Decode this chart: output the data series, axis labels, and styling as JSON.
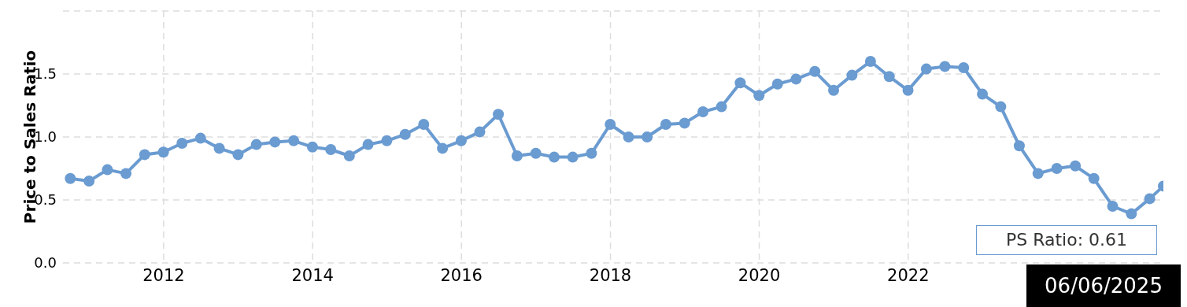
{
  "chart_data": {
    "type": "line",
    "ylabel": "Price to Sales Ratio",
    "x": [
      "2010-09-30",
      "2010-12-31",
      "2011-03-31",
      "2011-06-30",
      "2011-09-30",
      "2011-12-31",
      "2012-03-31",
      "2012-06-30",
      "2012-09-30",
      "2012-12-31",
      "2013-03-31",
      "2013-06-30",
      "2013-09-30",
      "2013-12-31",
      "2014-03-31",
      "2014-06-30",
      "2014-09-30",
      "2014-12-31",
      "2015-03-31",
      "2015-06-30",
      "2015-09-30",
      "2015-12-31",
      "2016-03-31",
      "2016-06-30",
      "2016-09-30",
      "2016-12-31",
      "2017-03-31",
      "2017-06-30",
      "2017-09-30",
      "2017-12-31",
      "2018-03-31",
      "2018-06-30",
      "2018-09-30",
      "2018-12-31",
      "2019-03-31",
      "2019-06-30",
      "2019-09-30",
      "2019-12-31",
      "2020-03-31",
      "2020-06-30",
      "2020-09-30",
      "2020-12-31",
      "2021-03-31",
      "2021-06-30",
      "2021-09-30",
      "2021-12-31",
      "2022-03-31",
      "2022-06-30",
      "2022-09-30",
      "2022-12-31",
      "2023-03-31",
      "2023-06-30",
      "2023-09-30",
      "2023-12-31",
      "2024-03-31",
      "2024-06-30",
      "2024-09-30",
      "2024-12-31",
      "2025-03-31",
      "2025-06-06"
    ],
    "series": [
      {
        "color": "#6a9bd1",
        "values": [
          0.67,
          0.65,
          0.74,
          0.71,
          0.86,
          0.88,
          0.95,
          0.99,
          0.91,
          0.86,
          0.94,
          0.96,
          0.97,
          0.92,
          0.9,
          0.85,
          0.94,
          0.97,
          1.02,
          1.1,
          0.91,
          0.97,
          1.04,
          1.18,
          0.85,
          0.87,
          0.84,
          0.84,
          0.87,
          1.1,
          1.0,
          1.0,
          1.1,
          1.11,
          1.2,
          1.24,
          1.43,
          1.33,
          1.42,
          1.46,
          1.52,
          1.37,
          1.49,
          1.6,
          1.48,
          1.37,
          1.54,
          1.56,
          1.55,
          1.34,
          1.24,
          0.93,
          0.71,
          0.75,
          0.77,
          0.67,
          0.45,
          0.39,
          0.51,
          0.61
        ]
      }
    ],
    "xlim": [
      "2010-08-25",
      "2025-06-06"
    ],
    "xticks": [
      {
        "value": "2012-01-01",
        "label": "2012"
      },
      {
        "value": "2014-01-01",
        "label": "2014"
      },
      {
        "value": "2016-01-01",
        "label": "2016"
      },
      {
        "value": "2018-01-01",
        "label": "2018"
      },
      {
        "value": "2020-01-01",
        "label": "2020"
      },
      {
        "value": "2022-01-01",
        "label": "2022"
      }
    ],
    "ylim": [
      0,
      2
    ],
    "yticks": [
      {
        "value": 0,
        "label": "0.0"
      },
      {
        "value": 0.5,
        "label": "0.5"
      },
      {
        "value": 1,
        "label": "1.0"
      },
      {
        "value": 1.5,
        "label": "1.5"
      },
      {
        "value": 2,
        "label": null
      }
    ],
    "grid": true,
    "legend": false,
    "marker": "circle",
    "line_style": "solid",
    "annotations": [
      "PS Ratio: 0.61",
      "06/06/2025"
    ]
  }
}
